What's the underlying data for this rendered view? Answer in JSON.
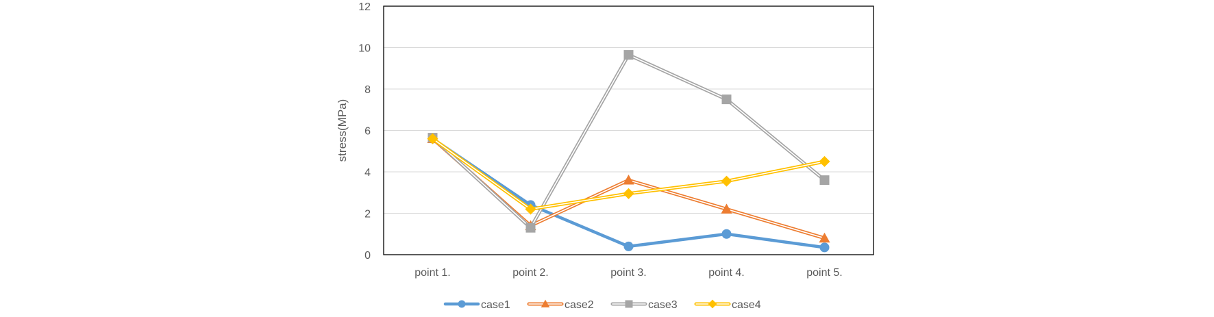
{
  "chart_data": {
    "type": "line",
    "title": "",
    "xlabel": "",
    "ylabel": "stress(MPa)",
    "ylim": [
      0,
      12
    ],
    "yticks": [
      0,
      2,
      4,
      6,
      8,
      10,
      12
    ],
    "grid": true,
    "legend_position": "bottom",
    "categories": [
      "point 1.",
      "point 2.",
      "point 3.",
      "point 4.",
      "point 5."
    ],
    "series": [
      {
        "name": "case1",
        "color": "#5B9BD5",
        "marker": "circle",
        "style": "solid",
        "values": [
          5.6,
          2.4,
          0.4,
          1.0,
          0.35
        ]
      },
      {
        "name": "case2",
        "color": "#ED7D31",
        "marker": "triangle",
        "style": "double",
        "values": [
          5.6,
          1.4,
          3.6,
          2.2,
          0.8
        ]
      },
      {
        "name": "case3",
        "color": "#A5A5A5",
        "marker": "square",
        "style": "double",
        "values": [
          5.65,
          1.3,
          9.65,
          7.5,
          3.6
        ]
      },
      {
        "name": "case4",
        "color": "#FFC000",
        "marker": "diamond",
        "style": "double",
        "values": [
          5.6,
          2.2,
          2.95,
          3.55,
          4.5
        ]
      }
    ]
  }
}
